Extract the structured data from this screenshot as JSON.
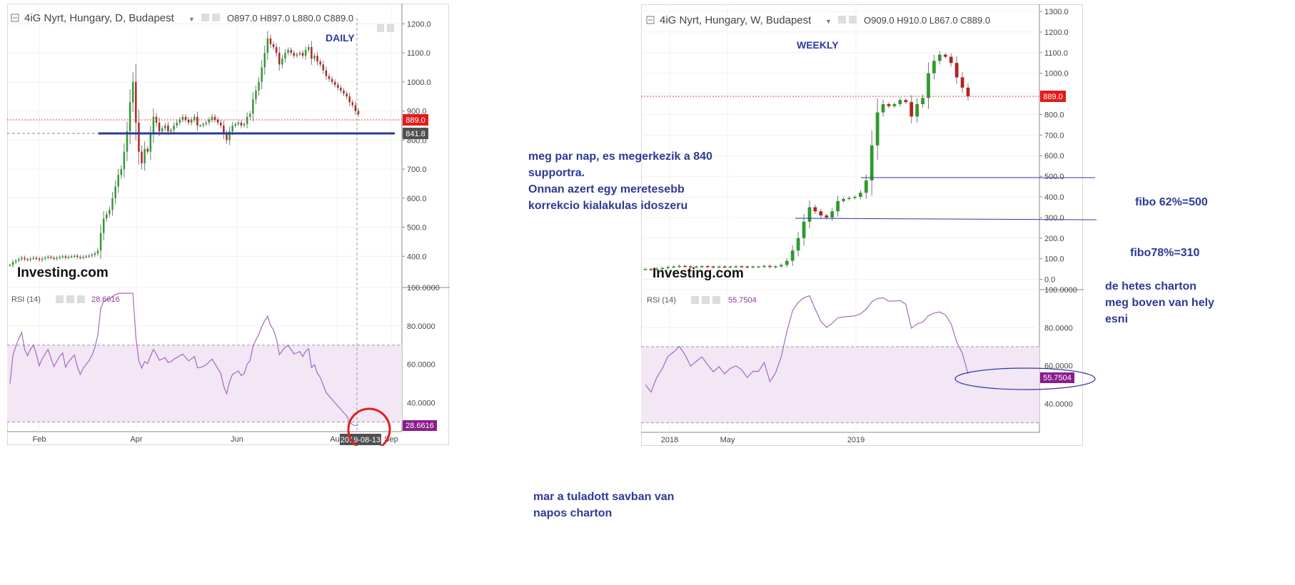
{
  "daily": {
    "header": {
      "title": "4iG Nyrt, Hungary, D, Budapest",
      "ohlc": "O897.0  H897.0  L880.0  C889.0"
    },
    "label": "DAILY",
    "price_badge": "889.0",
    "support_badge": "841.8",
    "rsi_label": "RSI (14)",
    "rsi_value": "28.6616",
    "rsi_badge": "28.6616",
    "date_badge": "2019-08-13",
    "watermark": "Investing.com",
    "colors": {
      "up": "#2e9a2e",
      "down": "#b32222",
      "support": "#2d3a9c",
      "rsi": "#a36ac0",
      "highlight": "#e02020"
    },
    "chart_data": {
      "type": "candlestick",
      "price_axis": {
        "min": 300,
        "max": 1250,
        "ticks": [
          "1200.0",
          "1100.0",
          "1000.0",
          "900.0",
          "800.0",
          "700.0",
          "600.0",
          "500.0",
          "400.0"
        ]
      },
      "x_ticks": [
        "Feb",
        "Apr",
        "Jun",
        "Aug",
        "Sep"
      ],
      "last_price": 889.0,
      "support_level": 841.8,
      "closes": [
        370,
        380,
        385,
        390,
        395,
        390,
        388,
        392,
        395,
        392,
        388,
        392,
        395,
        398,
        395,
        392,
        395,
        398,
        400,
        395,
        398,
        400,
        402,
        398,
        395,
        398,
        400,
        402,
        405,
        410,
        420,
        480,
        530,
        545,
        560,
        600,
        640,
        680,
        700,
        760,
        830,
        930,
        1000,
        860,
        760,
        720,
        770,
        760,
        820,
        880,
        860,
        830,
        840,
        850,
        830,
        835,
        850,
        860,
        870,
        880,
        870,
        860,
        870,
        880,
        850,
        850,
        855,
        860,
        870,
        880,
        870,
        860,
        850,
        820,
        800,
        830,
        850,
        855,
        860,
        850,
        855,
        880,
        890,
        940,
        970,
        1000,
        1050,
        1100,
        1150,
        1130,
        1120,
        1100,
        1060,
        1080,
        1100,
        1110,
        1100,
        1090,
        1095,
        1100,
        1090,
        1110,
        1120,
        1080,
        1090,
        1070,
        1060,
        1040,
        1020,
        1010,
        1000,
        990,
        980,
        970,
        960,
        950,
        930,
        920,
        900,
        889
      ],
      "rsi": {
        "levels": [
          70,
          30
        ],
        "axis": {
          "min": 25,
          "max": 100,
          "ticks": [
            "100.0000",
            "80.0000",
            "60.0000",
            "40.0000"
          ]
        },
        "last": 28.6616
      }
    }
  },
  "weekly": {
    "header": {
      "title": "4iG Nyrt, Hungary, W, Budapest",
      "ohlc": "O909.0  H910.0  L867.0  C889.0"
    },
    "label": "WEEKLY",
    "price_badge": "889.0",
    "rsi_label": "RSI (14)",
    "rsi_value": "55.7504",
    "rsi_badge": "55.7504",
    "watermark": "Investing.com",
    "chart_data": {
      "type": "candlestick",
      "price_axis": {
        "min": -50,
        "max": 1300,
        "ticks": [
          "1300.0",
          "1200.0",
          "1100.0",
          "1000.0",
          "900.0",
          "800.0",
          "700.0",
          "600.0",
          "500.0",
          "400.0",
          "300.0",
          "200.0",
          "100.0",
          "0.0"
        ]
      },
      "x_ticks": [
        "2018",
        "May",
        "2019"
      ],
      "last_price": 889.0,
      "fibo_levels": [
        500,
        310
      ],
      "closes": [
        50,
        48,
        52,
        55,
        60,
        62,
        65,
        63,
        60,
        62,
        64,
        62,
        60,
        62,
        60,
        62,
        63,
        62,
        60,
        62,
        62,
        65,
        60,
        63,
        70,
        90,
        140,
        200,
        280,
        350,
        330,
        310,
        300,
        330,
        380,
        390,
        395,
        400,
        420,
        480,
        650,
        810,
        850,
        840,
        850,
        870,
        860,
        790,
        850,
        880,
        1000,
        1060,
        1090,
        1080,
        1050,
        980,
        930,
        889
      ],
      "rsi": {
        "levels": [
          70,
          30
        ],
        "axis": {
          "min": 25,
          "max": 100,
          "ticks": [
            "100.0000",
            "80.0000",
            "60.0000",
            "40.0000"
          ]
        },
        "last": 55.7504
      }
    }
  },
  "notes": {
    "support": [
      "meg par  nap, es megerkezik a 840",
      "supportra.",
      "Onnan azert egy meretesebb",
      "korrekcio kialakulas idoszeru"
    ],
    "oversold": [
      "mar a tuladott savban van",
      "napos charton"
    ],
    "fibo62": "fibo 62%=500",
    "fibo78": "fibo78%=310",
    "weekly_note": [
      "de hetes charton",
      "meg boven van hely",
      "esni"
    ]
  }
}
